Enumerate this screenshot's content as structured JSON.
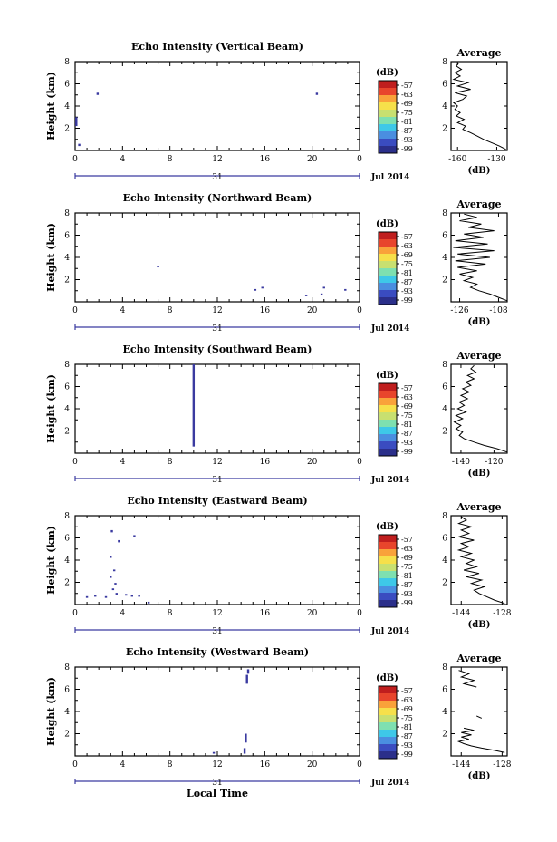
{
  "figure": {
    "xlabel_bottom": "Local Time",
    "height_label": "Height (km)",
    "colorbar_unit": "(dB)",
    "avg_title": "Average",
    "avg_xlabel": "(dB)",
    "date_day": "31",
    "date_label": "Jul 2014"
  },
  "colors": {
    "colormap": [
      "#2b2f8a",
      "#3a4cc0",
      "#4a8ee0",
      "#3ec8e8",
      "#7ee0b0",
      "#c8e070",
      "#f6e04a",
      "#f9a23a",
      "#e8452c",
      "#c01e1e"
    ]
  },
  "chart_data": [
    {
      "type": "heatmap",
      "title": "Echo Intensity (Vertical Beam)",
      "x_ticks": [
        "0",
        "4",
        "8",
        "12",
        "16",
        "20",
        "0"
      ],
      "y_ticks": [
        "2",
        "4",
        "6",
        "8"
      ],
      "xlim": [
        0,
        24
      ],
      "ylim": [
        0,
        8
      ],
      "colorbar_ticks": [
        "-57",
        "-63",
        "-69",
        "-75",
        "-81",
        "-87",
        "-93",
        "-99"
      ],
      "echoes": [
        {
          "t": 0.1,
          "h0": 2.2,
          "h1": 3.0
        },
        {
          "t": 0.35,
          "h0": 0.4,
          "h1": 0.6
        },
        {
          "t": 1.9,
          "h0": 5.0,
          "h1": 5.2
        },
        {
          "t": 20.4,
          "h0": 5.0,
          "h1": 5.2
        }
      ],
      "average": {
        "title": "Average",
        "xlabel": "(dB)",
        "x_ticks": [
          "-160",
          "-130"
        ],
        "x_tick_values": [
          -160,
          -130
        ],
        "xlim": [
          -165,
          -122
        ],
        "y_ticks": [
          "2",
          "4",
          "6",
          "8"
        ],
        "ylim": [
          0,
          8
        ],
        "profile": [
          {
            "h": 0.1,
            "v": -123
          },
          {
            "h": 0.4,
            "v": -128
          },
          {
            "h": 0.7,
            "v": -134
          },
          {
            "h": 1.0,
            "v": -140
          },
          {
            "h": 1.3,
            "v": -145
          },
          {
            "h": 1.6,
            "v": -150
          },
          {
            "h": 1.9,
            "v": -156
          },
          {
            "h": 2.2,
            "v": -154
          },
          {
            "h": 2.5,
            "v": -160
          },
          {
            "h": 2.8,
            "v": -155
          },
          {
            "h": 3.1,
            "v": -161
          },
          {
            "h": 3.4,
            "v": -158
          },
          {
            "h": 3.7,
            "v": -162
          },
          {
            "h": 4.0,
            "v": -160
          },
          {
            "h": 4.3,
            "v": -163
          },
          {
            "h": 4.6,
            "v": -156
          },
          {
            "h": 4.9,
            "v": -153
          },
          {
            "h": 5.2,
            "v": -162
          },
          {
            "h": 5.5,
            "v": -150
          },
          {
            "h": 5.8,
            "v": -160
          },
          {
            "h": 6.1,
            "v": -152
          },
          {
            "h": 6.4,
            "v": -163
          },
          {
            "h": 6.7,
            "v": -158
          },
          {
            "h": 7.0,
            "v": -162
          },
          {
            "h": 7.3,
            "v": -157
          },
          {
            "h": 7.6,
            "v": -161
          },
          {
            "h": 7.9,
            "v": -159
          }
        ]
      }
    },
    {
      "type": "heatmap",
      "title": "Echo Intensity (Northward Beam)",
      "x_ticks": [
        "0",
        "4",
        "8",
        "12",
        "16",
        "20",
        "0"
      ],
      "y_ticks": [
        "2",
        "4",
        "6",
        "8"
      ],
      "xlim": [
        0,
        24
      ],
      "ylim": [
        0,
        8
      ],
      "colorbar_ticks": [
        "-57",
        "-63",
        "-69",
        "-75",
        "-81",
        "-87",
        "-93",
        "-99"
      ],
      "echoes": [
        {
          "t": 7.0,
          "h0": 3.1,
          "h1": 3.25
        },
        {
          "t": 15.2,
          "h0": 1.0,
          "h1": 1.15
        },
        {
          "t": 15.8,
          "h0": 1.2,
          "h1": 1.35
        },
        {
          "t": 19.5,
          "h0": 0.5,
          "h1": 0.65
        },
        {
          "t": 20.8,
          "h0": 0.6,
          "h1": 0.75
        },
        {
          "t": 21.0,
          "h0": 1.2,
          "h1": 1.35
        },
        {
          "t": 22.8,
          "h0": 1.0,
          "h1": 1.15
        }
      ],
      "average": {
        "title": "Average",
        "xlabel": "(dB)",
        "x_ticks": [
          "-126",
          "-108"
        ],
        "x_tick_values": [
          -126,
          -108
        ],
        "xlim": [
          -130,
          -104
        ],
        "y_ticks": [
          "2",
          "4",
          "6",
          "8"
        ],
        "ylim": [
          0,
          8
        ],
        "profile": [
          {
            "h": 0.1,
            "v": -104
          },
          {
            "h": 0.4,
            "v": -108
          },
          {
            "h": 0.7,
            "v": -112
          },
          {
            "h": 1.0,
            "v": -117
          },
          {
            "h": 1.3,
            "v": -121
          },
          {
            "h": 1.6,
            "v": -118
          },
          {
            "h": 1.9,
            "v": -124
          },
          {
            "h": 2.2,
            "v": -120
          },
          {
            "h": 2.5,
            "v": -126
          },
          {
            "h": 2.8,
            "v": -118
          },
          {
            "h": 3.1,
            "v": -127
          },
          {
            "h": 3.4,
            "v": -114
          },
          {
            "h": 3.7,
            "v": -128
          },
          {
            "h": 4.0,
            "v": -112
          },
          {
            "h": 4.3,
            "v": -127
          },
          {
            "h": 4.6,
            "v": -110
          },
          {
            "h": 4.9,
            "v": -129
          },
          {
            "h": 5.2,
            "v": -113
          },
          {
            "h": 5.5,
            "v": -128
          },
          {
            "h": 5.8,
            "v": -115
          },
          {
            "h": 6.1,
            "v": -124
          },
          {
            "h": 6.4,
            "v": -110
          },
          {
            "h": 6.7,
            "v": -122
          },
          {
            "h": 7.0,
            "v": -116
          },
          {
            "h": 7.3,
            "v": -126
          },
          {
            "h": 7.6,
            "v": -118
          },
          {
            "h": 7.9,
            "v": -124
          }
        ]
      }
    },
    {
      "type": "heatmap",
      "title": "Echo Intensity (Southward Beam)",
      "x_ticks": [
        "0",
        "4",
        "8",
        "12",
        "16",
        "20",
        "0"
      ],
      "y_ticks": [
        "2",
        "4",
        "6",
        "8"
      ],
      "xlim": [
        0,
        24
      ],
      "ylim": [
        0,
        8
      ],
      "colorbar_ticks": [
        "-57",
        "-63",
        "-69",
        "-75",
        "-81",
        "-87",
        "-93",
        "-99"
      ],
      "echoes": [
        {
          "t": 10.0,
          "h0": 0.6,
          "h1": 8.0
        }
      ],
      "average": {
        "title": "Average",
        "xlabel": "(dB)",
        "x_ticks": [
          "-140",
          "-120"
        ],
        "x_tick_values": [
          -140,
          -120
        ],
        "xlim": [
          -146,
          -112
        ],
        "y_ticks": [
          "2",
          "4",
          "6",
          "8"
        ],
        "ylim": [
          0,
          8
        ],
        "profile": [
          {
            "h": 0.1,
            "v": -112
          },
          {
            "h": 0.4,
            "v": -118
          },
          {
            "h": 0.7,
            "v": -126
          },
          {
            "h": 1.0,
            "v": -132
          },
          {
            "h": 1.3,
            "v": -138
          },
          {
            "h": 1.6,
            "v": -141
          },
          {
            "h": 1.9,
            "v": -139
          },
          {
            "h": 2.2,
            "v": -143
          },
          {
            "h": 2.5,
            "v": -140
          },
          {
            "h": 2.8,
            "v": -144
          },
          {
            "h": 3.1,
            "v": -139
          },
          {
            "h": 3.4,
            "v": -143
          },
          {
            "h": 3.7,
            "v": -137
          },
          {
            "h": 4.0,
            "v": -142
          },
          {
            "h": 4.3,
            "v": -138
          },
          {
            "h": 4.6,
            "v": -141
          },
          {
            "h": 4.9,
            "v": -136
          },
          {
            "h": 5.2,
            "v": -140
          },
          {
            "h": 5.5,
            "v": -135
          },
          {
            "h": 5.8,
            "v": -139
          },
          {
            "h": 6.1,
            "v": -134
          },
          {
            "h": 6.4,
            "v": -137
          },
          {
            "h": 6.7,
            "v": -132
          },
          {
            "h": 7.0,
            "v": -136
          },
          {
            "h": 7.3,
            "v": -131
          },
          {
            "h": 7.6,
            "v": -134
          },
          {
            "h": 7.9,
            "v": -132
          }
        ]
      }
    },
    {
      "type": "heatmap",
      "title": "Echo Intensity (Eastward Beam)",
      "x_ticks": [
        "0",
        "4",
        "8",
        "12",
        "16",
        "20",
        "0"
      ],
      "y_ticks": [
        "2",
        "4",
        "6",
        "8"
      ],
      "xlim": [
        0,
        24
      ],
      "ylim": [
        0,
        8
      ],
      "colorbar_ticks": [
        "-57",
        "-63",
        "-69",
        "-75",
        "-81",
        "-87",
        "-93",
        "-99"
      ],
      "echoes": [
        {
          "t": 1.0,
          "h0": 0.6,
          "h1": 0.75
        },
        {
          "t": 1.7,
          "h0": 0.7,
          "h1": 0.85
        },
        {
          "t": 2.6,
          "h0": 0.6,
          "h1": 0.75
        },
        {
          "t": 3.0,
          "h0": 2.4,
          "h1": 2.55
        },
        {
          "t": 3.0,
          "h0": 4.2,
          "h1": 4.35
        },
        {
          "t": 3.2,
          "h0": 1.3,
          "h1": 1.45
        },
        {
          "t": 3.3,
          "h0": 3.0,
          "h1": 3.15
        },
        {
          "t": 3.4,
          "h0": 1.8,
          "h1": 1.95
        },
        {
          "t": 3.5,
          "h0": 0.9,
          "h1": 1.05
        },
        {
          "t": 3.1,
          "h0": 6.5,
          "h1": 6.7
        },
        {
          "t": 3.7,
          "h0": 5.6,
          "h1": 5.8
        },
        {
          "t": 4.3,
          "h0": 0.8,
          "h1": 0.95
        },
        {
          "t": 4.8,
          "h0": 0.7,
          "h1": 0.85
        },
        {
          "t": 5.0,
          "h0": 6.1,
          "h1": 6.25
        },
        {
          "t": 5.4,
          "h0": 0.7,
          "h1": 0.85
        },
        {
          "t": 6.2,
          "h0": 0.1,
          "h1": 0.25
        }
      ],
      "average": {
        "title": "Average",
        "xlabel": "(dB)",
        "x_ticks": [
          "-144",
          "-128"
        ],
        "x_tick_values": [
          -144,
          -128
        ],
        "xlim": [
          -148,
          -126
        ],
        "y_ticks": [
          "2",
          "4",
          "6",
          "8"
        ],
        "ylim": [
          0,
          8
        ],
        "profile": [
          {
            "h": 0.1,
            "v": -127
          },
          {
            "h": 0.4,
            "v": -131
          },
          {
            "h": 0.7,
            "v": -134
          },
          {
            "h": 1.0,
            "v": -137
          },
          {
            "h": 1.3,
            "v": -139
          },
          {
            "h": 1.6,
            "v": -135
          },
          {
            "h": 1.9,
            "v": -140
          },
          {
            "h": 2.2,
            "v": -136
          },
          {
            "h": 2.5,
            "v": -142
          },
          {
            "h": 2.8,
            "v": -137
          },
          {
            "h": 3.1,
            "v": -143
          },
          {
            "h": 3.4,
            "v": -138
          },
          {
            "h": 3.7,
            "v": -142
          },
          {
            "h": 4.0,
            "v": -139
          },
          {
            "h": 4.3,
            "v": -144
          },
          {
            "h": 4.6,
            "v": -140
          },
          {
            "h": 4.9,
            "v": -145
          },
          {
            "h": 5.2,
            "v": -141
          },
          {
            "h": 5.5,
            "v": -144
          },
          {
            "h": 5.8,
            "v": -139
          },
          {
            "h": 6.1,
            "v": -145
          },
          {
            "h": 6.4,
            "v": -141
          },
          {
            "h": 6.7,
            "v": -144
          },
          {
            "h": 7.0,
            "v": -140
          },
          {
            "h": 7.3,
            "v": -145
          },
          {
            "h": 7.6,
            "v": -142
          },
          {
            "h": 7.9,
            "v": -144
          }
        ]
      }
    },
    {
      "type": "heatmap",
      "title": "Echo Intensity (Westward Beam)",
      "x_ticks": [
        "0",
        "4",
        "8",
        "12",
        "16",
        "20",
        "0"
      ],
      "y_ticks": [
        "2",
        "4",
        "6",
        "8"
      ],
      "xlim": [
        0,
        24
      ],
      "ylim": [
        0,
        8
      ],
      "colorbar_ticks": [
        "-57",
        "-63",
        "-69",
        "-75",
        "-81",
        "-87",
        "-93",
        "-99"
      ],
      "echoes": [
        {
          "t": 11.7,
          "h0": 0.2,
          "h1": 0.35
        },
        {
          "t": 14.3,
          "h0": 0.2,
          "h1": 0.7
        },
        {
          "t": 14.4,
          "h0": 1.2,
          "h1": 2.0
        },
        {
          "t": 14.5,
          "h0": 6.5,
          "h1": 7.3
        },
        {
          "t": 14.6,
          "h0": 7.4,
          "h1": 7.8
        }
      ],
      "average": {
        "title": "Average",
        "xlabel": "(dB)",
        "x_ticks": [
          "-144",
          "-128"
        ],
        "x_tick_values": [
          -144,
          -128
        ],
        "xlim": [
          -148,
          -126
        ],
        "y_ticks": [
          "2",
          "4",
          "6",
          "8"
        ],
        "ylim": [
          0,
          8
        ],
        "profile": [
          {
            "h": 0.3,
            "v": -127
          },
          {
            "h": 0.5,
            "v": -131
          },
          {
            "h": 0.7,
            "v": -136
          },
          {
            "h": 0.9,
            "v": -140
          },
          {
            "h": 1.1,
            "v": -143
          },
          {
            "h": 1.3,
            "v": -145
          },
          {
            "h": 1.5,
            "v": -141
          },
          {
            "h": 1.7,
            "v": -144
          },
          {
            "h": 1.9,
            "v": -140
          },
          {
            "h": 2.1,
            "v": -144
          },
          {
            "h": 2.3,
            "v": -139
          },
          {
            "h": 2.5,
            "v": -143
          },
          {
            "h": 3.4,
            "v": -136
          },
          {
            "h": 3.6,
            "v": -138
          },
          {
            "h": 6.2,
            "v": -138
          },
          {
            "h": 6.5,
            "v": -143
          },
          {
            "h": 6.8,
            "v": -139
          },
          {
            "h": 7.1,
            "v": -144
          },
          {
            "h": 7.4,
            "v": -141
          },
          {
            "h": 7.7,
            "v": -145
          }
        ]
      }
    }
  ]
}
